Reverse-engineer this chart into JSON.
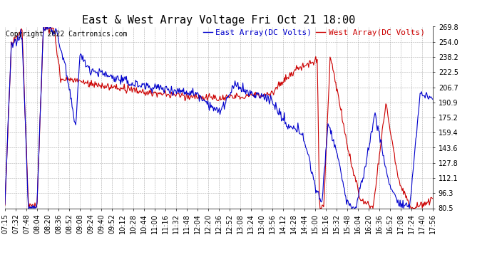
{
  "title": "East & West Array Voltage Fri Oct 21 18:00",
  "copyright": "Copyright 2022 Cartronics.com",
  "legend_east": "East Array(DC Volts)",
  "legend_west": "West Array(DC Volts)",
  "east_color": "#0000cc",
  "west_color": "#cc0000",
  "bg_color": "#ffffff",
  "grid_color": "#aaaaaa",
  "yticks": [
    80.5,
    96.3,
    112.1,
    127.8,
    143.6,
    159.4,
    175.2,
    190.9,
    206.7,
    222.5,
    238.2,
    254.0,
    269.8
  ],
  "xtick_labels": [
    "07:15",
    "07:32",
    "07:48",
    "08:04",
    "08:20",
    "08:36",
    "08:52",
    "09:08",
    "09:24",
    "09:40",
    "09:52",
    "10:12",
    "10:28",
    "10:44",
    "11:00",
    "11:16",
    "11:32",
    "11:48",
    "12:04",
    "12:20",
    "12:36",
    "12:52",
    "13:08",
    "13:24",
    "13:40",
    "13:56",
    "14:12",
    "14:28",
    "14:44",
    "15:00",
    "15:16",
    "15:32",
    "15:48",
    "16:04",
    "16:20",
    "16:36",
    "16:52",
    "17:08",
    "17:24",
    "17:40",
    "17:56"
  ],
  "ymin": 80.5,
  "ymax": 269.8,
  "title_fontsize": 11,
  "copyright_fontsize": 7,
  "legend_fontsize": 8,
  "tick_fontsize": 7
}
